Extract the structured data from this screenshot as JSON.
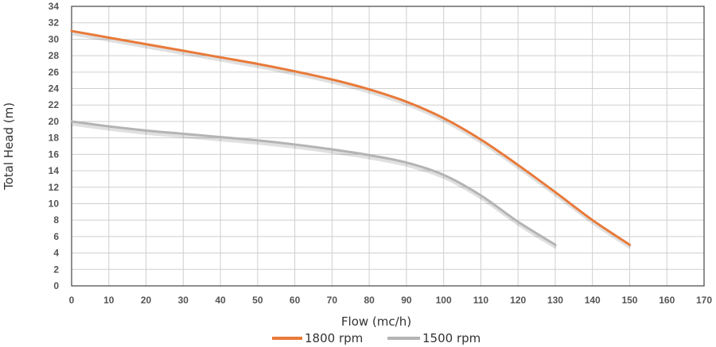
{
  "chart_data": {
    "type": "line",
    "xlabel": "Flow (mc/h)",
    "ylabel": "Total Head (m)",
    "xlim": [
      0,
      170
    ],
    "ylim": [
      0,
      34
    ],
    "x_ticks": [
      0,
      10,
      20,
      30,
      40,
      50,
      60,
      70,
      80,
      90,
      100,
      110,
      120,
      130,
      140,
      150,
      160,
      170
    ],
    "y_ticks": [
      0,
      2,
      4,
      6,
      8,
      10,
      12,
      14,
      16,
      18,
      20,
      22,
      24,
      26,
      28,
      30,
      32,
      34
    ],
    "grid": true,
    "legend_position": "bottom-center",
    "series": [
      {
        "name": "1800 rpm",
        "color": "#e87a3a",
        "x": [
          0,
          10,
          20,
          30,
          40,
          50,
          60,
          70,
          80,
          90,
          100,
          110,
          120,
          130,
          140,
          150
        ],
        "y": [
          31,
          30.2,
          29.4,
          28.6,
          27.8,
          27.0,
          26.1,
          25.1,
          23.9,
          22.4,
          20.4,
          17.8,
          14.7,
          11.4,
          8.0,
          5.0
        ]
      },
      {
        "name": "1500 rpm",
        "color": "#b4b4b4",
        "x": [
          0,
          10,
          20,
          30,
          40,
          50,
          60,
          70,
          80,
          90,
          100,
          110,
          120,
          130
        ],
        "y": [
          20,
          19.4,
          18.9,
          18.5,
          18.1,
          17.7,
          17.2,
          16.6,
          15.9,
          15.0,
          13.5,
          11.0,
          7.8,
          5.0
        ]
      }
    ]
  }
}
